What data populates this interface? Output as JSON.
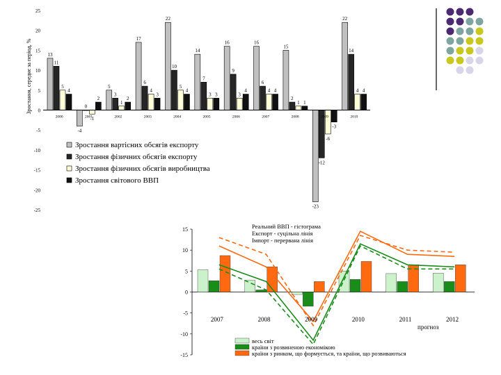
{
  "chart_data": [
    {
      "type": "bar",
      "ylabel": "Зростання, середнє за період, %",
      "ylim": [
        -25,
        25
      ],
      "yticks": [
        25,
        20,
        15,
        10,
        5,
        0,
        -5,
        -10,
        -15,
        -20,
        -25
      ],
      "categories": [
        "2000",
        "2001",
        "2002",
        "2003",
        "2004",
        "2005",
        "2006",
        "2007",
        "2008",
        "2009",
        "2010"
      ],
      "series": [
        {
          "name": "Зростання вартісних обсягів експорту",
          "color": "#c0c0c0",
          "values": [
            13,
            -4,
            5,
            17,
            22,
            14,
            16,
            16,
            15,
            -23,
            22
          ]
        },
        {
          "name": "Зростання фізичних обсягів експорту",
          "color": "#262626",
          "values": [
            11,
            0,
            3,
            6,
            10,
            7,
            9,
            6,
            2,
            -12,
            14
          ]
        },
        {
          "name": "Зростання фізичних обсягів виробництва",
          "color": "#fefed8",
          "values": [
            5,
            -1,
            1,
            4,
            5,
            3,
            3,
            4,
            1,
            -6,
            4
          ]
        },
        {
          "name": "Зростання світового ВВП",
          "color": "#111111",
          "values": [
            4,
            2,
            2,
            3,
            4,
            3,
            4,
            4,
            1,
            -3,
            4
          ]
        }
      ],
      "data_labels": [
        [
          "13",
          "-4",
          "5",
          "17",
          "22",
          "14",
          "16",
          "16",
          "15",
          "-23",
          "22"
        ],
        [
          "11",
          "0",
          "3",
          "6",
          "10",
          "7",
          "9",
          "6",
          "2",
          "-12",
          "14"
        ],
        [
          "5",
          "-1",
          "1",
          "4",
          "5",
          "3",
          "3",
          "4",
          "1",
          "-6",
          "4"
        ],
        [
          "4",
          "2",
          "2",
          "3",
          "4",
          "3",
          "4",
          "4",
          "1",
          "-3",
          "4"
        ]
      ],
      "legend": "bottom-left"
    },
    {
      "type": "bar",
      "ylim": [
        -15,
        15
      ],
      "yticks": [
        15,
        10,
        5,
        0,
        -5,
        -10,
        -15
      ],
      "categories": [
        "2007",
        "2008",
        "2009",
        "2010",
        "2011",
        "2012"
      ],
      "forecast_note": "прогноз",
      "line_legend": [
        "Реальний ВВП - гістограма",
        "Експорт - суцільна лінія",
        "Імпорт - перервана лінія"
      ],
      "series": [
        {
          "name": "весь світ",
          "color": "#ccf2cc",
          "values": [
            5.3,
            2.8,
            -0.6,
            5.0,
            4.4,
            4.5
          ]
        },
        {
          "name": "країни з розвиненою економікою",
          "color": "#1a8c1a",
          "values": [
            2.7,
            0.5,
            -3.4,
            3.0,
            2.5,
            2.5
          ]
        },
        {
          "name": "країни з ринком, що формується, та країни, що розвиваються",
          "color": "#ff6a10",
          "values": [
            8.7,
            6.0,
            2.5,
            7.3,
            6.5,
            6.5
          ]
        }
      ],
      "lines": [
        {
          "color": "#1a8c1a",
          "dashed": false,
          "values": [
            6.5,
            2.5,
            -11.5,
            11.5,
            6.5,
            6.0
          ]
        },
        {
          "color": "#1a8c1a",
          "dashed": true,
          "values": [
            5.5,
            0.5,
            -12.5,
            11.0,
            5.5,
            5.5
          ]
        },
        {
          "color": "#ff6a10",
          "dashed": false,
          "values": [
            11.0,
            6.0,
            -7.0,
            14.5,
            9.0,
            8.5
          ]
        },
        {
          "color": "#ff6a10",
          "dashed": true,
          "values": [
            13.0,
            9.0,
            -8.0,
            13.5,
            10.0,
            9.5
          ]
        }
      ],
      "legend": "bottom"
    }
  ],
  "decor": {
    "palette": [
      "#4b2a72",
      "#7fa5a0",
      "#c8c820",
      "#d6d6e8"
    ],
    "rule_color": "#000000"
  }
}
